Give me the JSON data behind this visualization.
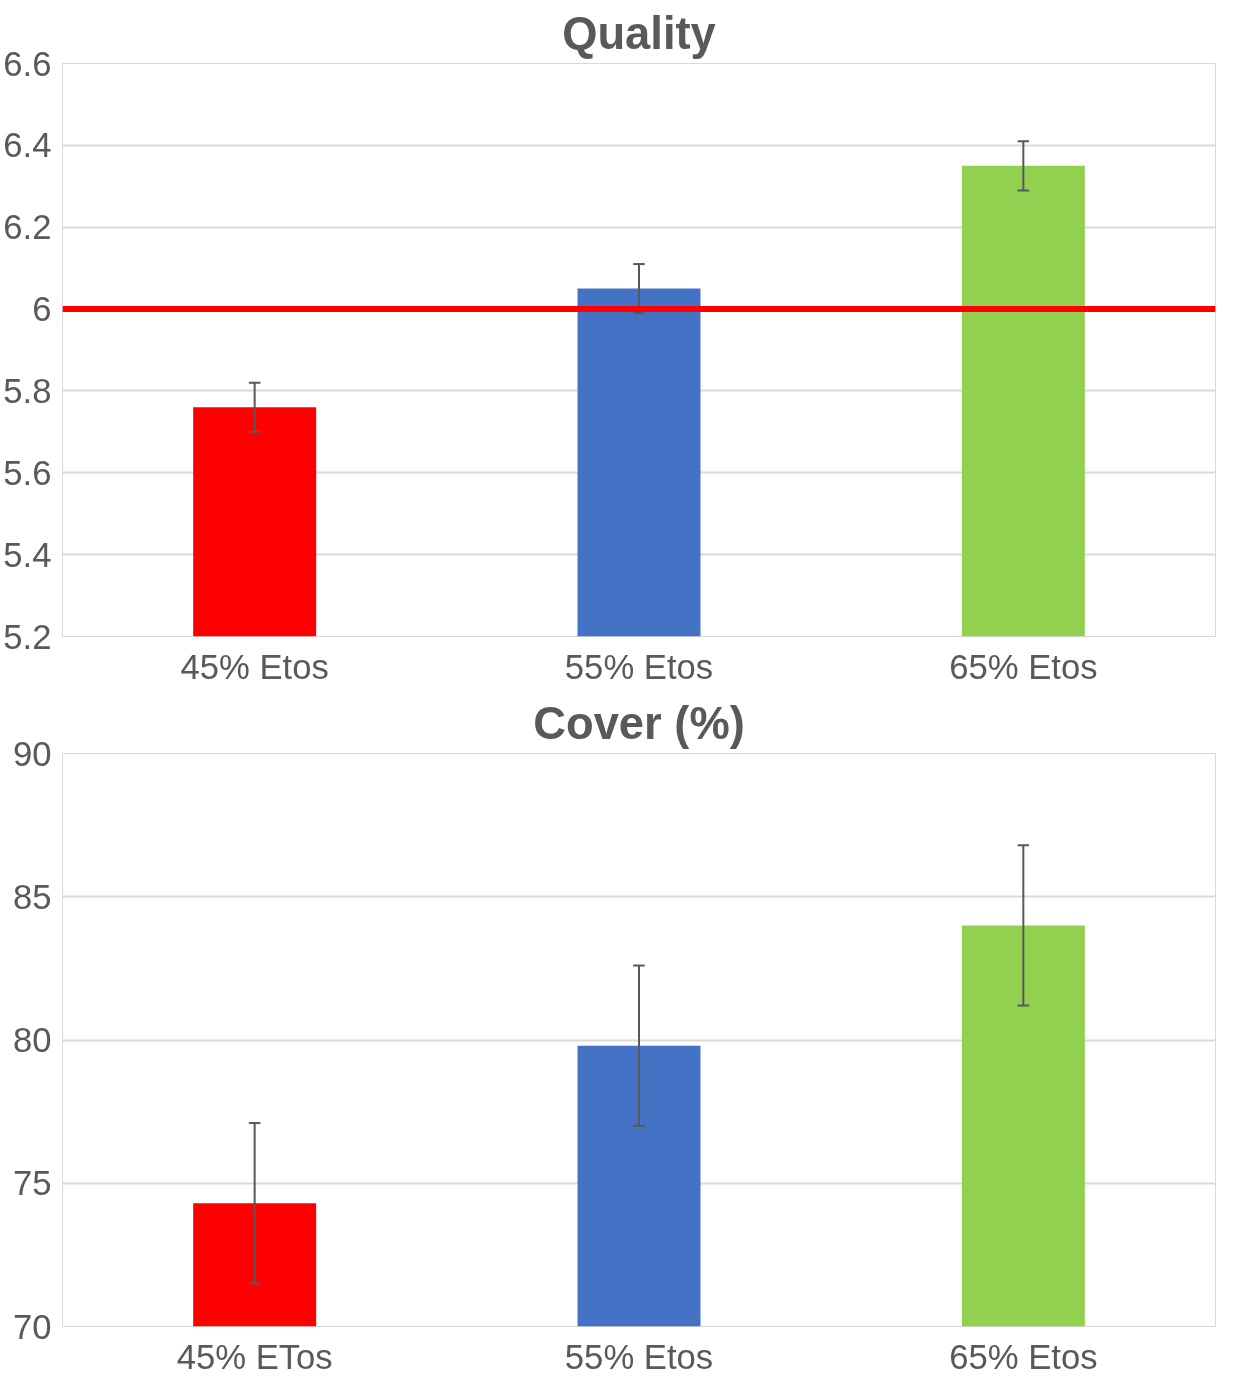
{
  "chart_data": [
    {
      "type": "bar",
      "title": "Quality",
      "categories": [
        "45% Etos",
        "55% Etos",
        "65% Etos"
      ],
      "values": [
        5.76,
        6.05,
        6.35
      ],
      "colors": [
        "#ff0000",
        "#4472c4",
        "#92d050"
      ],
      "errors": [
        0.06,
        0.06,
        0.06
      ],
      "ylim": [
        5.2,
        6.6
      ],
      "yticks": [
        5.2,
        5.4,
        5.6,
        5.8,
        6,
        6.2,
        6.4,
        6.6
      ],
      "grid": "y",
      "ref_lines": [
        {
          "axis": "y",
          "value": 6,
          "color": "#ff0000"
        }
      ]
    },
    {
      "type": "bar",
      "title": "Cover (%)",
      "categories": [
        "45% ETos",
        "55% Etos",
        "65% Etos"
      ],
      "values": [
        74.3,
        79.8,
        84.0
      ],
      "colors": [
        "#ff0000",
        "#4472c4",
        "#92d050"
      ],
      "errors": [
        2.8,
        2.8,
        2.8
      ],
      "ylim": [
        70,
        90
      ],
      "yticks": [
        70,
        75,
        80,
        85,
        90
      ],
      "grid": "y"
    }
  ]
}
